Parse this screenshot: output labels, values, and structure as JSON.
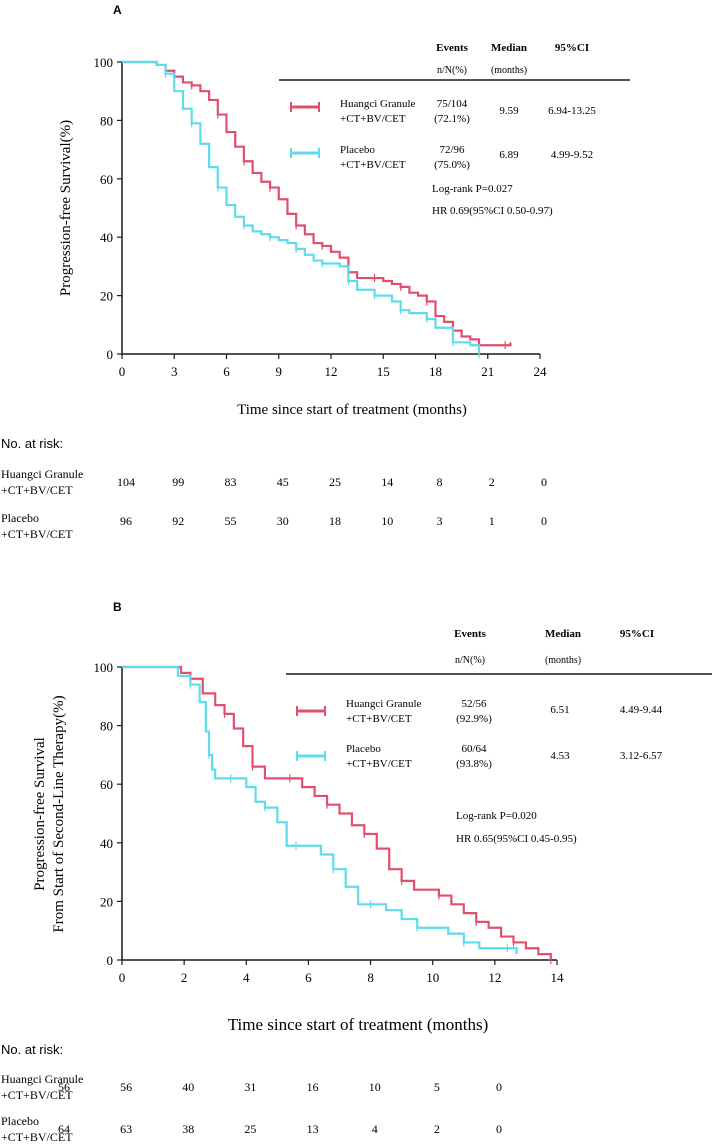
{
  "colors": {
    "treatment": "#e0506e",
    "placebo": "#5fdcea",
    "axis": "#1a1a1a"
  },
  "chart_data": [
    {
      "panel": "A",
      "type": "line",
      "ylabel": "Progression-free Survival(%)",
      "xlabel": "Time since start of treatment (months)",
      "xlim": [
        0,
        24
      ],
      "ylim": [
        0,
        100
      ],
      "xticks": [
        0,
        3,
        6,
        9,
        12,
        15,
        18,
        21,
        24
      ],
      "yticks": [
        0,
        20,
        40,
        60,
        80,
        100
      ],
      "table_header": {
        "events": "Events",
        "events_sub": "n/N(%)",
        "median": "Median",
        "median_sub": "(months)",
        "ci": "95%CI"
      },
      "series": [
        {
          "name_line1": "Huangci Granule",
          "name_line2": "+CT+BV/CET",
          "events_line1": "75/104",
          "events_line2": "(72.1%)",
          "median": "9.59",
          "ci": "6.94-13.25",
          "color_key": "treatment",
          "x": [
            0,
            2,
            2.5,
            3,
            3.5,
            4,
            4.5,
            5,
            5.5,
            6,
            6.5,
            7,
            7.5,
            8,
            8.5,
            9,
            9.5,
            10,
            10.5,
            11,
            11.5,
            12,
            12.5,
            13,
            13.5,
            14,
            14.5,
            15,
            15.5,
            16,
            16.5,
            17,
            17.5,
            18,
            18.5,
            19,
            19.5,
            20,
            20.5,
            21,
            21.5,
            22,
            22.3
          ],
          "y": [
            100,
            99,
            97,
            95,
            93,
            92,
            90,
            87,
            82,
            76,
            71,
            66,
            62,
            59,
            57,
            53,
            48,
            44,
            41,
            38,
            37,
            35,
            33,
            28,
            26,
            26,
            26,
            25,
            24,
            23,
            21,
            20,
            18,
            13,
            11,
            8,
            6,
            5,
            3,
            3,
            3,
            3,
            4
          ]
        },
        {
          "name_line1": "Placebo",
          "name_line2": "+CT+BV/CET",
          "events_line1": "72/96",
          "events_line2": "(75.0%)",
          "median": "6.89",
          "ci": "4.99-9.52",
          "color_key": "placebo",
          "x": [
            0,
            2,
            2.5,
            3,
            3.5,
            4,
            4.5,
            5,
            5.5,
            6,
            6.5,
            7,
            7.5,
            8,
            8.5,
            9,
            9.5,
            10,
            10.5,
            11,
            11.5,
            12,
            12.5,
            13,
            13.5,
            14,
            14.5,
            15,
            15.5,
            16,
            16.5,
            17,
            17.5,
            18,
            18.5,
            19,
            19.5,
            20,
            20.5
          ],
          "y": [
            100,
            99,
            96,
            90,
            84,
            79,
            72,
            64,
            57,
            51,
            47,
            44,
            42,
            41,
            40,
            39,
            38,
            36,
            34,
            32,
            31,
            31,
            30,
            25,
            22,
            22,
            20,
            20,
            18,
            15,
            14,
            14,
            12,
            9,
            9,
            4,
            4,
            3,
            0
          ]
        }
      ],
      "logrank": "Log-rank P=0.027",
      "hr": "HR 0.69(95%CI 0.50-0.97)",
      "risk": {
        "title": "No. at risk:",
        "rows": [
          {
            "label_line1": "Huangci Granule",
            "label_line2": "+CT+BV/CET",
            "values": [
              "104",
              "99",
              "83",
              "45",
              "25",
              "14",
              "8",
              "2",
              "0"
            ]
          },
          {
            "label_line1": "Placebo",
            "label_line2": "+CT+BV/CET",
            "values": [
              "96",
              "92",
              "55",
              "30",
              "18",
              "10",
              "3",
              "1",
              "0"
            ]
          }
        ]
      }
    },
    {
      "panel": "B",
      "type": "line",
      "ylabel_line1": "Progression-free Survival",
      "ylabel_line2": "From Start of Second-Line Therapy(%)",
      "xlabel": "Time since start of treatment (months)",
      "xlim": [
        0,
        14
      ],
      "ylim": [
        0,
        100
      ],
      "xticks": [
        0,
        2,
        4,
        6,
        8,
        10,
        12,
        14
      ],
      "yticks": [
        0,
        20,
        40,
        60,
        80,
        100
      ],
      "table_header": {
        "events": "Events",
        "events_sub": "n/N(%)",
        "median": "Median",
        "median_sub": "(months)",
        "ci": "95%CI"
      },
      "series": [
        {
          "name_line1": "Huangci Granule",
          "name_line2": "+CT+BV/CET",
          "events_line1": "52/56",
          "events_line2": "(92.9%)",
          "median": "6.51",
          "ci": "4.49-9.44",
          "color_key": "treatment",
          "x": [
            0,
            1.9,
            2.2,
            2.6,
            3,
            3.3,
            3.6,
            3.9,
            4.2,
            4.6,
            5,
            5.4,
            5.8,
            6.2,
            6.6,
            7,
            7.4,
            7.8,
            8.2,
            8.6,
            9,
            9.4,
            9.8,
            10.2,
            10.6,
            11,
            11.4,
            11.8,
            12.2,
            12.6,
            13,
            13.4,
            13.8
          ],
          "y": [
            100,
            98,
            96,
            91,
            87,
            84,
            79,
            73,
            66,
            62,
            62,
            62,
            59,
            56,
            53,
            50,
            46,
            43,
            38,
            31,
            27,
            24,
            24,
            22,
            19,
            16,
            13,
            11,
            8,
            6,
            4,
            2,
            0
          ]
        },
        {
          "name_line1": "Placebo",
          "name_line2": "+CT+BV/CET",
          "events_line1": "60/64",
          "events_line2": "(93.8%)",
          "median": "4.53",
          "ci": "3.12-6.57",
          "color_key": "placebo",
          "x": [
            0,
            1.8,
            2.2,
            2.5,
            2.7,
            2.8,
            2.9,
            3,
            3.5,
            4,
            4.3,
            4.6,
            5,
            5.3,
            5.6,
            6,
            6.4,
            6.8,
            7.2,
            7.6,
            8,
            8.5,
            9,
            9.5,
            10,
            10.5,
            11,
            11.5,
            12,
            12.4,
            12.7
          ],
          "y": [
            100,
            97,
            94,
            88,
            78,
            70,
            65,
            62,
            62,
            59,
            54,
            52,
            47,
            39,
            39,
            39,
            36,
            31,
            25,
            19,
            19,
            17,
            14,
            11,
            11,
            9,
            6,
            4,
            4,
            4,
            2
          ]
        }
      ],
      "logrank": "Log-rank P=0.020",
      "hr": "HR 0.65(95%CI 0.45-0.95)",
      "risk": {
        "title": "No. at risk:",
        "rows": [
          {
            "label_line1": "Huangci Granule",
            "label_line2": "+CT+BV/CET",
            "values": [
              "56",
              "56",
              "40",
              "31",
              "16",
              "10",
              "5",
              "0"
            ]
          },
          {
            "label_line1": "Placebo",
            "label_line2": "+CT+BV/CET",
            "values": [
              "64",
              "63",
              "38",
              "25",
              "13",
              "4",
              "2",
              "0"
            ]
          }
        ]
      }
    }
  ]
}
